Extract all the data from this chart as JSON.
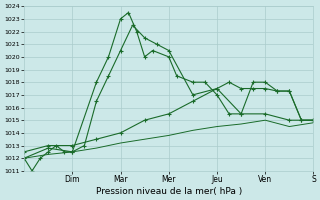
{
  "xlabel": "Pression niveau de la mer( hPa )",
  "ylim": [
    1011,
    1024
  ],
  "yticks": [
    1011,
    1012,
    1013,
    1014,
    1015,
    1016,
    1017,
    1018,
    1019,
    1020,
    1021,
    1022,
    1023,
    1024
  ],
  "day_labels": [
    "Dim",
    "Mar",
    "Mer",
    "Jeu",
    "Ven",
    "S"
  ],
  "day_positions": [
    2,
    4,
    6,
    8,
    10,
    12
  ],
  "background_color": "#cce8e8",
  "grid_color": "#aacccc",
  "line_color": "#1a6b2a",
  "line1_x": [
    0,
    0.33,
    0.67,
    1,
    1.33,
    1.67,
    2,
    3,
    3.5,
    4,
    4.33,
    4.67,
    5,
    5.33,
    6,
    6.33,
    7,
    7.5,
    8,
    8.5,
    9,
    9.5,
    10,
    10.5,
    11,
    11.5,
    12
  ],
  "line1_y": [
    1012,
    1011,
    1012,
    1012.5,
    1013,
    1012.5,
    1012.5,
    1018,
    1020,
    1023.0,
    1023.5,
    1022,
    1020,
    1020.5,
    1020,
    1018.5,
    1018,
    1018,
    1017,
    1015.5,
    1015.5,
    1018,
    1018,
    1017.3,
    1017.3,
    1015,
    1015
  ],
  "line2_x": [
    0,
    1,
    2,
    2.5,
    3,
    3.5,
    4,
    4.5,
    5,
    5.5,
    6,
    7,
    8,
    9,
    10,
    11,
    12
  ],
  "line2_y": [
    1012,
    1012.8,
    1012.5,
    1013,
    1016.5,
    1018.5,
    1020.5,
    1022.5,
    1021.5,
    1021,
    1020.5,
    1017,
    1017.5,
    1015.5,
    1015.5,
    1015,
    1015
  ],
  "line3_x": [
    0,
    1,
    2,
    3,
    4,
    5,
    6,
    7,
    8,
    8.5,
    9,
    9.5,
    10,
    10.5,
    11,
    11.5,
    12
  ],
  "line3_y": [
    1012.5,
    1013,
    1013,
    1013.5,
    1014,
    1015,
    1015.5,
    1016.5,
    1017.5,
    1018,
    1017.5,
    1017.5,
    1017.5,
    1017.3,
    1017.3,
    1015,
    1015
  ],
  "line4_x": [
    0,
    1,
    2,
    3,
    4,
    5,
    6,
    7,
    8,
    9,
    10,
    11,
    12
  ],
  "line4_y": [
    1012,
    1012.3,
    1012.5,
    1012.8,
    1013.2,
    1013.5,
    1013.8,
    1014.2,
    1014.5,
    1014.7,
    1015.0,
    1014.5,
    1014.8
  ]
}
